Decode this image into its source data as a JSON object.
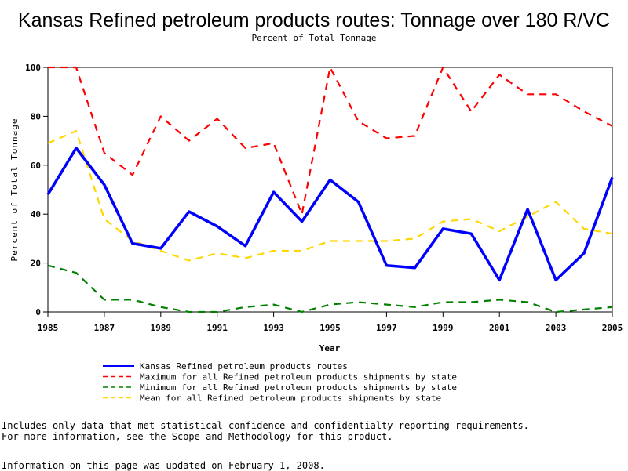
{
  "chart_data": {
    "type": "line",
    "title": "Kansas Refined petroleum products routes: Tonnage over 180 R/VC",
    "subtitle": "Percent of Total Tonnage",
    "xlabel": "Year",
    "ylabel": "Percent of Total Tonnage",
    "xlim": [
      1985,
      2005
    ],
    "ylim": [
      0,
      100
    ],
    "x_ticks": [
      "1985",
      "1987",
      "1989",
      "1991",
      "1993",
      "1995",
      "1997",
      "1999",
      "2001",
      "2003",
      "2005"
    ],
    "y_ticks": [
      "0",
      "20",
      "40",
      "60",
      "80",
      "100"
    ],
    "grid": false,
    "legend_placement": "bottom",
    "x": [
      1985,
      1986,
      1987,
      1988,
      1989,
      1990,
      1991,
      1992,
      1993,
      1994,
      1995,
      1996,
      1997,
      1998,
      1999,
      2000,
      2001,
      2002,
      2003,
      2004,
      2005
    ],
    "series": [
      {
        "name": "Kansas Refined petroleum products routes",
        "color": "#0000ff",
        "style": "solid",
        "values": [
          48,
          67,
          52,
          28,
          26,
          41,
          35,
          27,
          49,
          37,
          54,
          45,
          19,
          18,
          34,
          32,
          13,
          42,
          13,
          24,
          55
        ]
      },
      {
        "name": "Maximum for all Refined petroleum products shipments by state",
        "color": "#ff0000",
        "style": "dashed",
        "values": [
          100,
          100,
          65,
          56,
          80,
          70,
          79,
          67,
          69,
          40,
          100,
          78,
          71,
          72,
          100,
          82,
          97,
          89,
          89,
          82,
          76
        ]
      },
      {
        "name": "Minimum for all Refined petroleum products shipments by state",
        "color": "#008000",
        "style": "dashed",
        "values": [
          19,
          16,
          5,
          5,
          2,
          0,
          0,
          2,
          3,
          0,
          3,
          4,
          3,
          2,
          4,
          4,
          5,
          4,
          0,
          1,
          2
        ]
      },
      {
        "name": "Mean for all Refined petroleum products shipments by state",
        "color": "#ffd700",
        "style": "dashed",
        "values": [
          69,
          74,
          38,
          29,
          25,
          21,
          24,
          22,
          25,
          25,
          29,
          29,
          29,
          30,
          37,
          38,
          33,
          39,
          45,
          34,
          32
        ]
      }
    ]
  },
  "notes": {
    "line1": "Includes only data that met statistical confidence and confidentialty reporting requirements.",
    "line2": "For more information, see the Scope and Methodology for this product.",
    "line3": "Information on this page was updated on February 1, 2008."
  }
}
